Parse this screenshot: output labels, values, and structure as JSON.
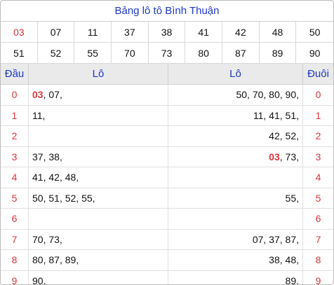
{
  "title": "Bảng lô tô Bình Thuận",
  "numbers": [
    {
      "v": "03",
      "hl": true
    },
    {
      "v": "07"
    },
    {
      "v": "11"
    },
    {
      "v": "37"
    },
    {
      "v": "38"
    },
    {
      "v": "41"
    },
    {
      "v": "42"
    },
    {
      "v": "48"
    },
    {
      "v": "50"
    },
    {
      "v": "51"
    },
    {
      "v": "52"
    },
    {
      "v": "55"
    },
    {
      "v": "70"
    },
    {
      "v": "73"
    },
    {
      "v": "80"
    },
    {
      "v": "87"
    },
    {
      "v": "89"
    },
    {
      "v": "90"
    }
  ],
  "headers": {
    "dau": "Đầu",
    "lo_left": "Lô",
    "lo_right": "Lô",
    "duoi": "Đuôi"
  },
  "rows": [
    {
      "dau": "0",
      "left": [
        {
          "t": "03",
          "red": true
        },
        {
          "t": "07"
        }
      ],
      "right": [
        {
          "t": "50"
        },
        {
          "t": "70"
        },
        {
          "t": "80"
        },
        {
          "t": "90"
        }
      ],
      "duoi": "0"
    },
    {
      "dau": "1",
      "left": [
        {
          "t": "11"
        }
      ],
      "right": [
        {
          "t": "11"
        },
        {
          "t": "41"
        },
        {
          "t": "51"
        }
      ],
      "duoi": "1"
    },
    {
      "dau": "2",
      "left": [],
      "right": [
        {
          "t": "42"
        },
        {
          "t": "52"
        }
      ],
      "duoi": "2"
    },
    {
      "dau": "3",
      "left": [
        {
          "t": "37"
        },
        {
          "t": "38"
        }
      ],
      "right": [
        {
          "t": "03",
          "red": true
        },
        {
          "t": "73"
        }
      ],
      "duoi": "3"
    },
    {
      "dau": "4",
      "left": [
        {
          "t": "41"
        },
        {
          "t": "42"
        },
        {
          "t": "48"
        }
      ],
      "right": [],
      "duoi": "4"
    },
    {
      "dau": "5",
      "left": [
        {
          "t": "50"
        },
        {
          "t": "51"
        },
        {
          "t": "52"
        },
        {
          "t": "55"
        }
      ],
      "right": [
        {
          "t": "55"
        }
      ],
      "duoi": "5"
    },
    {
      "dau": "6",
      "left": [],
      "right": [],
      "duoi": "6"
    },
    {
      "dau": "7",
      "left": [
        {
          "t": "70"
        },
        {
          "t": "73"
        }
      ],
      "right": [
        {
          "t": "07"
        },
        {
          "t": "37"
        },
        {
          "t": "87"
        }
      ],
      "duoi": "7"
    },
    {
      "dau": "8",
      "left": [
        {
          "t": "80"
        },
        {
          "t": "87"
        },
        {
          "t": "89"
        }
      ],
      "right": [
        {
          "t": "38"
        },
        {
          "t": "48"
        }
      ],
      "duoi": "8"
    },
    {
      "dau": "9",
      "left": [
        {
          "t": "90"
        }
      ],
      "right": [
        {
          "t": "89"
        }
      ],
      "duoi": "9"
    }
  ],
  "colors": {
    "title": "#1e37c8",
    "highlight": "#e0343d",
    "header_bg": "#eaeaea"
  }
}
